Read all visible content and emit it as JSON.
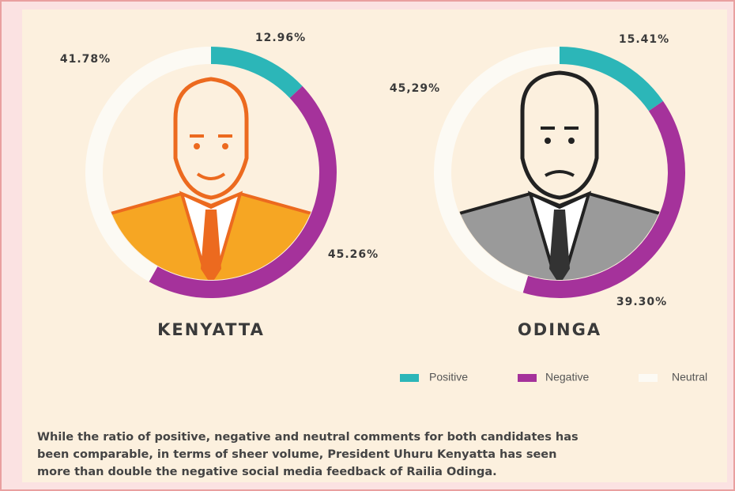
{
  "chart_data": [
    {
      "type": "pie",
      "title": "KENYATTA",
      "categories": [
        "Positive",
        "Negative",
        "Neutral"
      ],
      "values": [
        12.96,
        45.26,
        41.78
      ],
      "value_labels": [
        "12.96%",
        "45.26%",
        "41.78%"
      ],
      "colors": [
        "#2cb6b8",
        "#a5329b",
        "#fcfaf4"
      ]
    },
    {
      "type": "pie",
      "title": "ODINGA",
      "categories": [
        "Positive",
        "Negative",
        "Neutral"
      ],
      "values": [
        15.41,
        39.3,
        45.29
      ],
      "value_labels": [
        "15.41%",
        "39.30%",
        "45,29%"
      ],
      "colors": [
        "#2cb6b8",
        "#a5329b",
        "#fcfaf4"
      ]
    }
  ],
  "caption": [
    "While the ratio of positive, negative and neutral comments for both candidates has",
    "been comparable, in terms of sheer volume, President Uhuru Kenyatta has seen",
    "more than double the negative social media feedback of Railia Odinga."
  ]
}
